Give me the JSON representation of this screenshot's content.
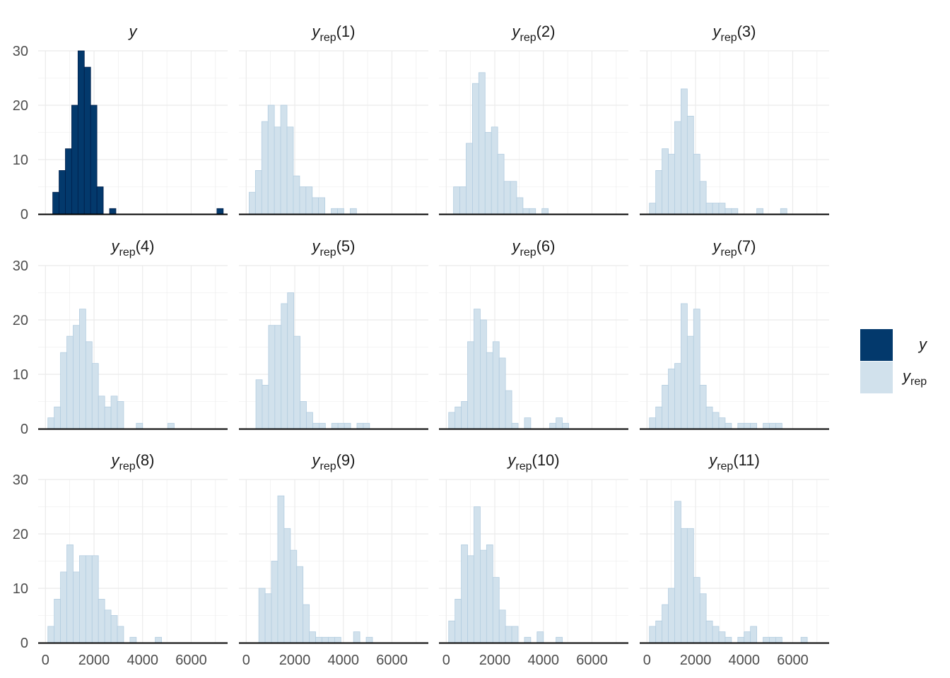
{
  "chart_data": {
    "type": "histogram",
    "layout": {
      "rows": 3,
      "cols": 4
    },
    "x_ticks": [
      0,
      2000,
      4000,
      6000
    ],
    "x_tick_labels": [
      "0",
      "2000",
      "4000",
      "6000"
    ],
    "xlim": [
      -300,
      7500
    ],
    "y_ticks": [
      0,
      10,
      20,
      30
    ],
    "y_tick_labels": [
      "0",
      "10",
      "20",
      "30"
    ],
    "ylim": [
      0,
      30
    ],
    "bin_width": 260,
    "grid": true,
    "colors": {
      "y": "#03396c",
      "yrep": "#d1e1ec",
      "y_edge": "#011f4b",
      "yrep_edge": "#b3cde0",
      "grid": "#ebebeb",
      "axis": "#000000"
    },
    "legend": {
      "position": "right",
      "entries": [
        {
          "key": "y",
          "base": "y",
          "sub": ""
        },
        {
          "key": "yrep",
          "base": "y",
          "sub": "rep"
        }
      ]
    },
    "panels": [
      {
        "kind": "y",
        "label": "y",
        "sub": "",
        "index": "",
        "bins": [
          [
            300,
            4
          ],
          [
            560,
            8
          ],
          [
            820,
            12
          ],
          [
            1080,
            20
          ],
          [
            1340,
            30
          ],
          [
            1600,
            27
          ],
          [
            1860,
            20
          ],
          [
            2120,
            5
          ],
          [
            2640,
            1
          ],
          [
            7060,
            1
          ]
        ]
      },
      {
        "kind": "yrep",
        "label": "y",
        "sub": "rep",
        "index": "(1)",
        "bins": [
          [
            120,
            4
          ],
          [
            380,
            8
          ],
          [
            640,
            17
          ],
          [
            900,
            20
          ],
          [
            1160,
            16
          ],
          [
            1420,
            20
          ],
          [
            1680,
            16
          ],
          [
            1940,
            7
          ],
          [
            2200,
            5
          ],
          [
            2460,
            5
          ],
          [
            2720,
            3
          ],
          [
            2980,
            3
          ],
          [
            3500,
            1
          ],
          [
            3760,
            1
          ],
          [
            4280,
            1
          ]
        ]
      },
      {
        "kind": "yrep",
        "label": "y",
        "sub": "rep",
        "index": "(2)",
        "bins": [
          [
            300,
            5
          ],
          [
            560,
            5
          ],
          [
            820,
            13
          ],
          [
            1080,
            24
          ],
          [
            1340,
            26
          ],
          [
            1600,
            15
          ],
          [
            1860,
            16
          ],
          [
            2120,
            11
          ],
          [
            2380,
            6
          ],
          [
            2640,
            6
          ],
          [
            2900,
            3
          ],
          [
            3160,
            1
          ],
          [
            3420,
            1
          ],
          [
            3940,
            1
          ]
        ]
      },
      {
        "kind": "yrep",
        "label": "y",
        "sub": "rep",
        "index": "(3)",
        "bins": [
          [
            100,
            2
          ],
          [
            360,
            8
          ],
          [
            620,
            12
          ],
          [
            880,
            11
          ],
          [
            1140,
            17
          ],
          [
            1400,
            23
          ],
          [
            1660,
            18
          ],
          [
            1920,
            11
          ],
          [
            2180,
            6
          ],
          [
            2440,
            2
          ],
          [
            2700,
            2
          ],
          [
            2960,
            2
          ],
          [
            3220,
            1
          ],
          [
            3480,
            1
          ],
          [
            4520,
            1
          ],
          [
            5500,
            1
          ]
        ]
      },
      {
        "kind": "yrep",
        "label": "y",
        "sub": "rep",
        "index": "(4)",
        "bins": [
          [
            100,
            2
          ],
          [
            360,
            4
          ],
          [
            620,
            14
          ],
          [
            880,
            17
          ],
          [
            1140,
            19
          ],
          [
            1400,
            22
          ],
          [
            1660,
            16
          ],
          [
            1920,
            12
          ],
          [
            2180,
            6
          ],
          [
            2440,
            4
          ],
          [
            2700,
            6
          ],
          [
            2960,
            5
          ],
          [
            3740,
            1
          ],
          [
            5040,
            1
          ]
        ]
      },
      {
        "kind": "yrep",
        "label": "y",
        "sub": "rep",
        "index": "(5)",
        "bins": [
          [
            400,
            9
          ],
          [
            660,
            8
          ],
          [
            920,
            19
          ],
          [
            1180,
            19
          ],
          [
            1440,
            23
          ],
          [
            1700,
            25
          ],
          [
            1960,
            17
          ],
          [
            2220,
            5
          ],
          [
            2480,
            3
          ],
          [
            2740,
            1
          ],
          [
            3000,
            1
          ],
          [
            3520,
            1
          ],
          [
            3780,
            1
          ],
          [
            4040,
            1
          ],
          [
            4560,
            1
          ],
          [
            4820,
            1
          ]
        ]
      },
      {
        "kind": "yrep",
        "label": "y",
        "sub": "rep",
        "index": "(6)",
        "bins": [
          [
            100,
            3
          ],
          [
            360,
            4
          ],
          [
            620,
            5
          ],
          [
            880,
            16
          ],
          [
            1140,
            22
          ],
          [
            1400,
            20
          ],
          [
            1660,
            14
          ],
          [
            1920,
            16
          ],
          [
            2180,
            13
          ],
          [
            2440,
            7
          ],
          [
            2700,
            1
          ],
          [
            3220,
            2
          ],
          [
            4260,
            1
          ],
          [
            4520,
            2
          ],
          [
            4780,
            1
          ]
        ]
      },
      {
        "kind": "yrep",
        "label": "y",
        "sub": "rep",
        "index": "(7)",
        "bins": [
          [
            100,
            2
          ],
          [
            360,
            4
          ],
          [
            620,
            8
          ],
          [
            880,
            11
          ],
          [
            1140,
            12
          ],
          [
            1400,
            23
          ],
          [
            1660,
            17
          ],
          [
            1920,
            22
          ],
          [
            2180,
            8
          ],
          [
            2440,
            4
          ],
          [
            2700,
            3
          ],
          [
            2960,
            2
          ],
          [
            3220,
            1
          ],
          [
            3740,
            1
          ],
          [
            4000,
            1
          ],
          [
            4260,
            1
          ],
          [
            4780,
            1
          ],
          [
            5040,
            1
          ],
          [
            5300,
            1
          ]
        ]
      },
      {
        "kind": "yrep",
        "label": "y",
        "sub": "rep",
        "index": "(8)",
        "bins": [
          [
            100,
            3
          ],
          [
            360,
            8
          ],
          [
            620,
            13
          ],
          [
            880,
            18
          ],
          [
            1140,
            13
          ],
          [
            1400,
            16
          ],
          [
            1660,
            16
          ],
          [
            1920,
            16
          ],
          [
            2180,
            8
          ],
          [
            2440,
            6
          ],
          [
            2700,
            5
          ],
          [
            2960,
            3
          ],
          [
            3480,
            1
          ],
          [
            4520,
            1
          ]
        ]
      },
      {
        "kind": "yrep",
        "label": "y",
        "sub": "rep",
        "index": "(9)",
        "bins": [
          [
            520,
            10
          ],
          [
            780,
            9
          ],
          [
            1040,
            15
          ],
          [
            1300,
            27
          ],
          [
            1560,
            21
          ],
          [
            1820,
            17
          ],
          [
            2080,
            14
          ],
          [
            2340,
            7
          ],
          [
            2600,
            2
          ],
          [
            2860,
            1
          ],
          [
            3120,
            1
          ],
          [
            3380,
            1
          ],
          [
            3640,
            1
          ],
          [
            4420,
            2
          ],
          [
            4940,
            1
          ]
        ]
      },
      {
        "kind": "yrep",
        "label": "y",
        "sub": "rep",
        "index": "(10)",
        "bins": [
          [
            100,
            4
          ],
          [
            360,
            8
          ],
          [
            620,
            18
          ],
          [
            880,
            16
          ],
          [
            1140,
            25
          ],
          [
            1400,
            17
          ],
          [
            1660,
            18
          ],
          [
            1920,
            12
          ],
          [
            2180,
            6
          ],
          [
            2440,
            3
          ],
          [
            2700,
            3
          ],
          [
            3220,
            1
          ],
          [
            3740,
            2
          ],
          [
            4520,
            1
          ]
        ]
      },
      {
        "kind": "yrep",
        "label": "y",
        "sub": "rep",
        "index": "(11)",
        "bins": [
          [
            100,
            3
          ],
          [
            360,
            4
          ],
          [
            620,
            7
          ],
          [
            880,
            10
          ],
          [
            1140,
            26
          ],
          [
            1400,
            21
          ],
          [
            1660,
            21
          ],
          [
            1920,
            12
          ],
          [
            2180,
            9
          ],
          [
            2440,
            4
          ],
          [
            2700,
            3
          ],
          [
            2960,
            2
          ],
          [
            3220,
            1
          ],
          [
            3740,
            1
          ],
          [
            4000,
            2
          ],
          [
            4260,
            3
          ],
          [
            4780,
            1
          ],
          [
            5040,
            1
          ],
          [
            5300,
            1
          ],
          [
            6340,
            1
          ]
        ]
      }
    ]
  }
}
